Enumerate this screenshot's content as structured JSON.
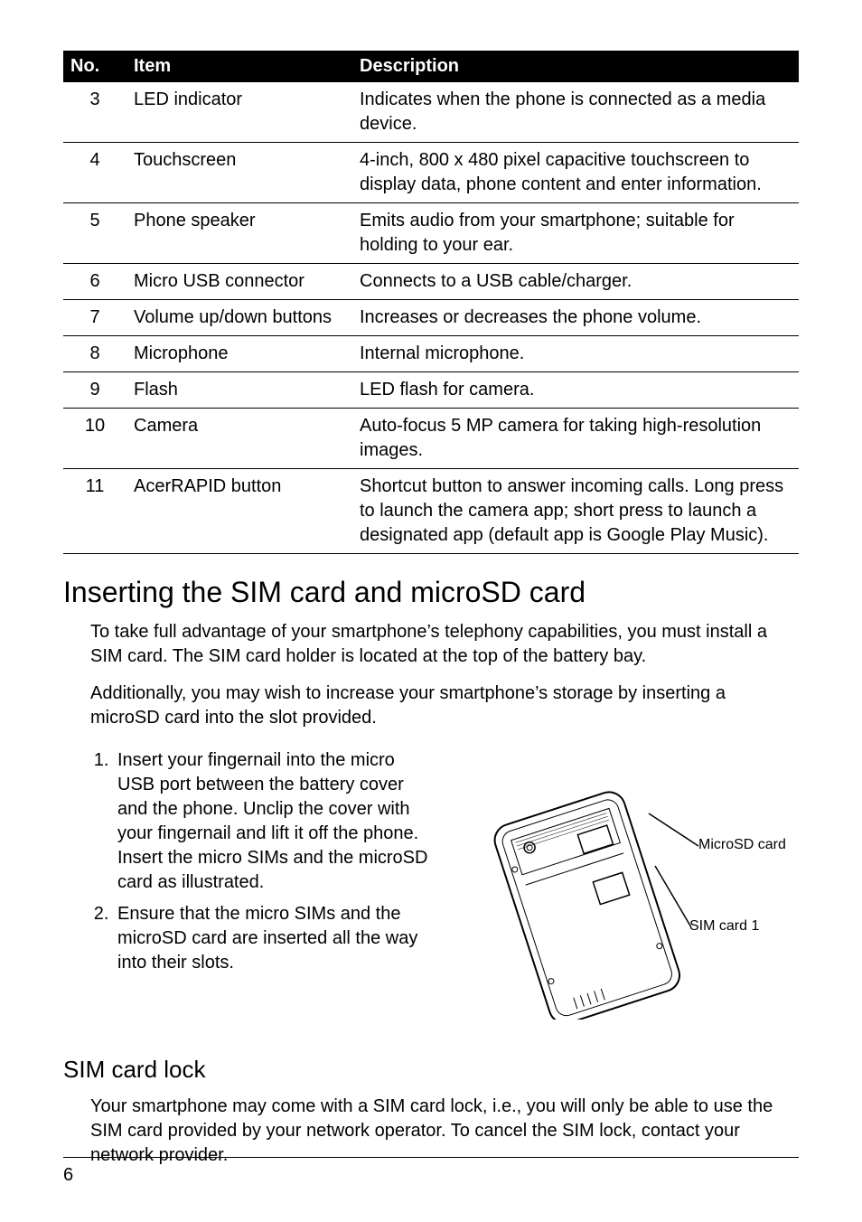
{
  "table": {
    "headers": [
      "No.",
      "Item",
      "Description"
    ],
    "rows": [
      [
        "3",
        "LED indicator",
        "Indicates when the phone is connected as a media device."
      ],
      [
        "4",
        "Touchscreen",
        "4-inch, 800 x 480 pixel capacitive touchscreen to display data, phone content and enter information."
      ],
      [
        "5",
        "Phone speaker",
        "Emits audio from your smartphone; suitable for holding to your ear."
      ],
      [
        "6",
        "Micro USB connector",
        "Connects to a USB cable/charger."
      ],
      [
        "7",
        "Volume up/down buttons",
        "Increases or decreases the phone volume."
      ],
      [
        "8",
        "Microphone",
        "Internal microphone."
      ],
      [
        "9",
        "Flash",
        "LED flash for camera."
      ],
      [
        "10",
        "Camera",
        "Auto-focus 5 MP camera for taking high-resolution images."
      ],
      [
        "11",
        "AcerRAPID button",
        "Shortcut button to answer incoming calls. Long press to launch the camera app; short press to launch a designated app (default app is Google Play Music)."
      ]
    ]
  },
  "section1": {
    "title": "Inserting the SIM card and microSD card",
    "para1": "To take full advantage of your smartphone’s telephony capabilities, you must install a SIM card. The SIM card holder is located at the top of the battery bay.",
    "para2": "Additionally, you may wish to increase your smartphone’s storage by inserting a microSD card into the slot provided.",
    "steps": [
      "Insert your fingernail into the micro USB port between the battery cover and the phone. Unclip the cover with your fingernail and lift it off the phone. Insert the micro SIMs and the microSD card as illustrated.",
      "Ensure that the micro SIMs and the microSD card are inserted all the way into their slots."
    ]
  },
  "diagram": {
    "label_microsd": "MicroSD card",
    "label_sim": "SIM card 1",
    "stroke": "#000000",
    "fill_light": "#f5f5f5"
  },
  "section2": {
    "title": "SIM card lock",
    "para": "Your smartphone may come with a SIM card lock, i.e., you will only be able to use the SIM card provided by your network operator. To cancel the SIM lock, contact your network provider."
  },
  "page_number": "6"
}
